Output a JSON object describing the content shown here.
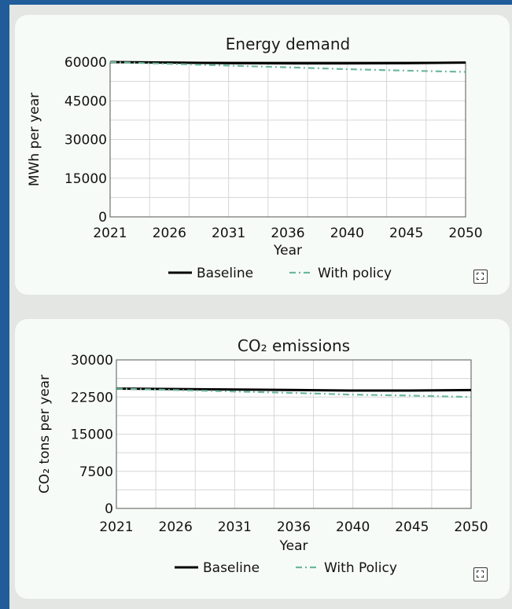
{
  "chart_data": [
    {
      "type": "line",
      "title": "Energy demand",
      "xlabel": "Year",
      "ylabel": "MWh per year",
      "xticks": [
        "2021",
        "2026",
        "2031",
        "2036",
        "2040",
        "2045",
        "2050"
      ],
      "yticks": [
        "60000",
        "45000",
        "30000",
        "15000",
        "0"
      ],
      "ylim": [
        0,
        60000
      ],
      "xlim": [
        2021,
        2050
      ],
      "grid": true,
      "legend_position": "bottom",
      "x": [
        2021,
        2026,
        2031,
        2036,
        2040,
        2045,
        2050
      ],
      "series": [
        {
          "name": "Baseline",
          "style": "solid",
          "color": "#000000",
          "values": [
            60000,
            59800,
            59600,
            59500,
            59500,
            59600,
            59800
          ]
        },
        {
          "name": "With policy",
          "style": "dashdot",
          "color": "#6bb89a",
          "values": [
            60000,
            59300,
            58600,
            57900,
            57300,
            56700,
            56200
          ]
        }
      ]
    },
    {
      "type": "line",
      "title": "CO₂ emissions",
      "xlabel": "Year",
      "ylabel": "CO₂ tons per year",
      "xticks": [
        "2021",
        "2026",
        "2031",
        "2036",
        "2040",
        "2045",
        "2050"
      ],
      "yticks": [
        "30000",
        "22500",
        "15000",
        "7500",
        "0"
      ],
      "ylim": [
        0,
        30000
      ],
      "xlim": [
        2021,
        2050
      ],
      "grid": true,
      "legend_position": "bottom",
      "x": [
        2021,
        2026,
        2031,
        2036,
        2040,
        2045,
        2050
      ],
      "series": [
        {
          "name": "Baseline",
          "style": "solid",
          "color": "#000000",
          "values": [
            24200,
            24100,
            24000,
            23900,
            23800,
            23800,
            23900
          ]
        },
        {
          "name": "With Policy",
          "style": "dashdot",
          "color": "#6bb89a",
          "values": [
            24200,
            23900,
            23600,
            23300,
            23000,
            22800,
            22500
          ]
        }
      ]
    }
  ]
}
